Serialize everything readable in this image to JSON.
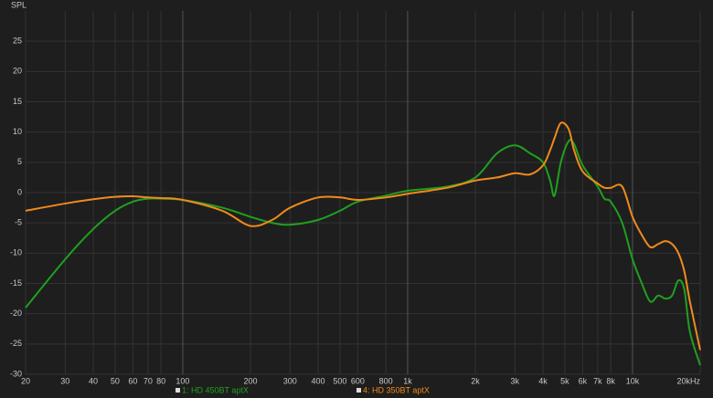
{
  "chart_data": {
    "type": "line",
    "y_label": "SPL",
    "log_x": true,
    "grid": true,
    "xlim": [
      20,
      20000
    ],
    "ylim": [
      -30,
      30
    ],
    "xticks": [
      20,
      30,
      40,
      50,
      60,
      70,
      80,
      100,
      200,
      300,
      400,
      500,
      600,
      800,
      {
        "value": 1000,
        "label": "1k"
      },
      {
        "value": 2000,
        "label": "2k"
      },
      {
        "value": 3000,
        "label": "3k"
      },
      {
        "value": 4000,
        "label": "4k"
      },
      {
        "value": 5000,
        "label": "5k"
      },
      {
        "value": 6000,
        "label": "6k"
      },
      {
        "value": 7000,
        "label": "7k"
      },
      {
        "value": 8000,
        "label": "8k"
      },
      {
        "value": 10000,
        "label": "10k"
      },
      {
        "value": 20000,
        "label": "20kHz"
      }
    ],
    "yticks": [
      -30,
      -25,
      -20,
      -15,
      -10,
      -5,
      0,
      5,
      10,
      15,
      20,
      25
    ],
    "x": [
      20,
      30,
      40,
      50,
      60,
      70,
      80,
      100,
      150,
      200,
      250,
      300,
      400,
      500,
      600,
      800,
      1000,
      1500,
      2000,
      2500,
      3000,
      3500,
      4000,
      4300,
      4500,
      4800,
      5200,
      5500,
      6000,
      7000,
      7500,
      8000,
      9000,
      10000,
      11000,
      12000,
      13000,
      14000,
      15000,
      16000,
      17000,
      18000,
      20000
    ],
    "series": [
      {
        "name": "1: HD 450BT aptX",
        "color": "#1fa01f",
        "values": [
          -19,
          -11,
          -6,
          -3,
          -1.5,
          -1,
          -1,
          -1.2,
          -2.5,
          -4,
          -5,
          -5.3,
          -4.5,
          -3,
          -1.5,
          -0.5,
          0.3,
          1,
          2.5,
          6.5,
          7.8,
          6.5,
          5,
          2,
          -0.5,
          5,
          8.5,
          8,
          4.5,
          1,
          -1,
          -1.5,
          -5,
          -11,
          -15,
          -18,
          -17,
          -17.5,
          -17,
          -14.5,
          -16,
          -23,
          -28.5
        ]
      },
      {
        "name": "4: HD 350BT aptX",
        "color": "#f08a1c",
        "values": [
          -3,
          -1.8,
          -1.1,
          -0.7,
          -0.6,
          -0.8,
          -0.9,
          -1.2,
          -3,
          -5.5,
          -4.5,
          -2.5,
          -0.8,
          -0.8,
          -1.2,
          -0.8,
          -0.2,
          0.8,
          2,
          2.5,
          3.2,
          3,
          4.5,
          7,
          9,
          11.5,
          10.5,
          7,
          3.5,
          1.5,
          0.8,
          0.8,
          1,
          -4,
          -7,
          -9,
          -8.5,
          -8,
          -8.5,
          -10,
          -13,
          -18,
          -26
        ]
      }
    ]
  }
}
